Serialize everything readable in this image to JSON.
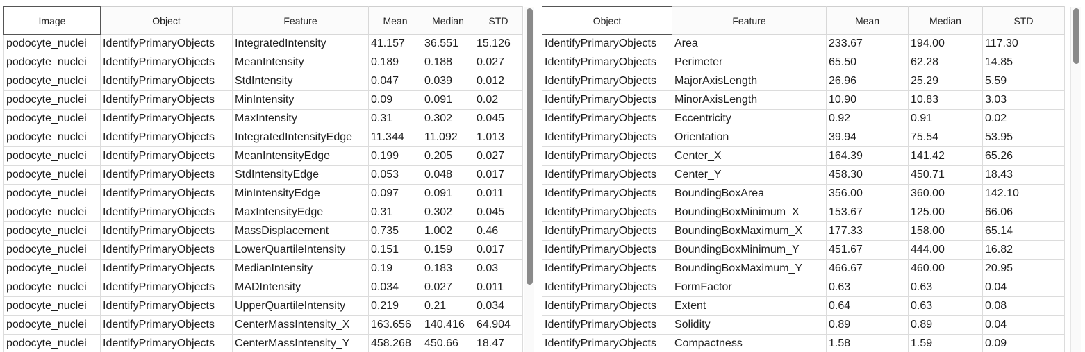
{
  "left_table": {
    "columns": [
      "Image",
      "Object",
      "Feature",
      "Mean",
      "Median",
      "STD"
    ],
    "rows": [
      [
        "podocyte_nuclei",
        "IdentifyPrimaryObjects",
        "IntegratedIntensity",
        "41.157",
        "36.551",
        "15.126"
      ],
      [
        "podocyte_nuclei",
        "IdentifyPrimaryObjects",
        "MeanIntensity",
        "0.189",
        "0.188",
        "0.027"
      ],
      [
        "podocyte_nuclei",
        "IdentifyPrimaryObjects",
        "StdIntensity",
        "0.047",
        "0.039",
        "0.012"
      ],
      [
        "podocyte_nuclei",
        "IdentifyPrimaryObjects",
        "MinIntensity",
        "0.09",
        "0.091",
        "0.02"
      ],
      [
        "podocyte_nuclei",
        "IdentifyPrimaryObjects",
        "MaxIntensity",
        "0.31",
        "0.302",
        "0.045"
      ],
      [
        "podocyte_nuclei",
        "IdentifyPrimaryObjects",
        "IntegratedIntensityEdge",
        "11.344",
        "11.092",
        "1.013"
      ],
      [
        "podocyte_nuclei",
        "IdentifyPrimaryObjects",
        "MeanIntensityEdge",
        "0.199",
        "0.205",
        "0.027"
      ],
      [
        "podocyte_nuclei",
        "IdentifyPrimaryObjects",
        "StdIntensityEdge",
        "0.053",
        "0.048",
        "0.017"
      ],
      [
        "podocyte_nuclei",
        "IdentifyPrimaryObjects",
        "MinIntensityEdge",
        "0.097",
        "0.091",
        "0.011"
      ],
      [
        "podocyte_nuclei",
        "IdentifyPrimaryObjects",
        "MaxIntensityEdge",
        "0.31",
        "0.302",
        "0.045"
      ],
      [
        "podocyte_nuclei",
        "IdentifyPrimaryObjects",
        "MassDisplacement",
        "0.735",
        "1.002",
        "0.46"
      ],
      [
        "podocyte_nuclei",
        "IdentifyPrimaryObjects",
        "LowerQuartileIntensity",
        "0.151",
        "0.159",
        "0.017"
      ],
      [
        "podocyte_nuclei",
        "IdentifyPrimaryObjects",
        "MedianIntensity",
        "0.19",
        "0.183",
        "0.03"
      ],
      [
        "podocyte_nuclei",
        "IdentifyPrimaryObjects",
        "MADIntensity",
        "0.034",
        "0.027",
        "0.011"
      ],
      [
        "podocyte_nuclei",
        "IdentifyPrimaryObjects",
        "UpperQuartileIntensity",
        "0.219",
        "0.21",
        "0.034"
      ],
      [
        "podocyte_nuclei",
        "IdentifyPrimaryObjects",
        "CenterMassIntensity_X",
        "163.656",
        "140.416",
        "64.904"
      ],
      [
        "podocyte_nuclei",
        "IdentifyPrimaryObjects",
        "CenterMassIntensity_Y",
        "458.268",
        "450.66",
        "18.47"
      ]
    ]
  },
  "right_table": {
    "columns": [
      "Object",
      "Feature",
      "Mean",
      "Median",
      "STD"
    ],
    "rows": [
      [
        "IdentifyPrimaryObjects",
        "Area",
        "233.67",
        "194.00",
        "117.30"
      ],
      [
        "IdentifyPrimaryObjects",
        "Perimeter",
        "65.50",
        "62.28",
        "14.85"
      ],
      [
        "IdentifyPrimaryObjects",
        "MajorAxisLength",
        "26.96",
        "25.29",
        "5.59"
      ],
      [
        "IdentifyPrimaryObjects",
        "MinorAxisLength",
        "10.90",
        "10.83",
        "3.03"
      ],
      [
        "IdentifyPrimaryObjects",
        "Eccentricity",
        "0.92",
        "0.91",
        "0.02"
      ],
      [
        "IdentifyPrimaryObjects",
        "Orientation",
        "39.94",
        "75.54",
        "53.95"
      ],
      [
        "IdentifyPrimaryObjects",
        "Center_X",
        "164.39",
        "141.42",
        "65.26"
      ],
      [
        "IdentifyPrimaryObjects",
        "Center_Y",
        "458.30",
        "450.71",
        "18.43"
      ],
      [
        "IdentifyPrimaryObjects",
        "BoundingBoxArea",
        "356.00",
        "360.00",
        "142.10"
      ],
      [
        "IdentifyPrimaryObjects",
        "BoundingBoxMinimum_X",
        "153.67",
        "125.00",
        "66.06"
      ],
      [
        "IdentifyPrimaryObjects",
        "BoundingBoxMaximum_X",
        "177.33",
        "158.00",
        "65.14"
      ],
      [
        "IdentifyPrimaryObjects",
        "BoundingBoxMinimum_Y",
        "451.67",
        "444.00",
        "16.82"
      ],
      [
        "IdentifyPrimaryObjects",
        "BoundingBoxMaximum_Y",
        "466.67",
        "460.00",
        "20.95"
      ],
      [
        "IdentifyPrimaryObjects",
        "FormFactor",
        "0.63",
        "0.63",
        "0.04"
      ],
      [
        "IdentifyPrimaryObjects",
        "Extent",
        "0.64",
        "0.63",
        "0.08"
      ],
      [
        "IdentifyPrimaryObjects",
        "Solidity",
        "0.89",
        "0.89",
        "0.04"
      ],
      [
        "IdentifyPrimaryObjects",
        "Compactness",
        "1.58",
        "1.59",
        "0.09"
      ]
    ]
  }
}
